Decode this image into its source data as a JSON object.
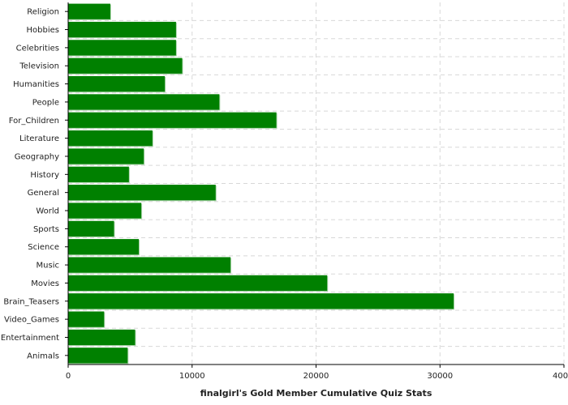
{
  "chart_data": {
    "type": "bar",
    "orientation": "horizontal",
    "categories": [
      "Religion",
      "Hobbies",
      "Celebrities",
      "Television",
      "Humanities",
      "People",
      "For_Children",
      "Literature",
      "Geography",
      "History",
      "General",
      "World",
      "Sports",
      "Science",
      "Music",
      "Movies",
      "Brain_Teasers",
      "Video_Games",
      "Entertainment",
      "Animals"
    ],
    "values": [
      3400,
      8700,
      8700,
      9200,
      7800,
      12200,
      16800,
      6800,
      6100,
      4900,
      11900,
      5900,
      3700,
      5700,
      13100,
      20900,
      31100,
      2900,
      5400,
      4800
    ],
    "xlabel": "finalgirl's Gold Member Cumulative Quiz Stats",
    "xlim": [
      0,
      40000
    ],
    "xticks": [
      "0",
      "10000",
      "20000",
      "30000",
      "40000"
    ],
    "tick_values": [
      0,
      10000,
      20000,
      30000,
      40000
    ],
    "grid": true,
    "bar_color": "#008000",
    "bar_shadow_color": "#b0d8b0",
    "grid_color": "#d8d8d8"
  }
}
